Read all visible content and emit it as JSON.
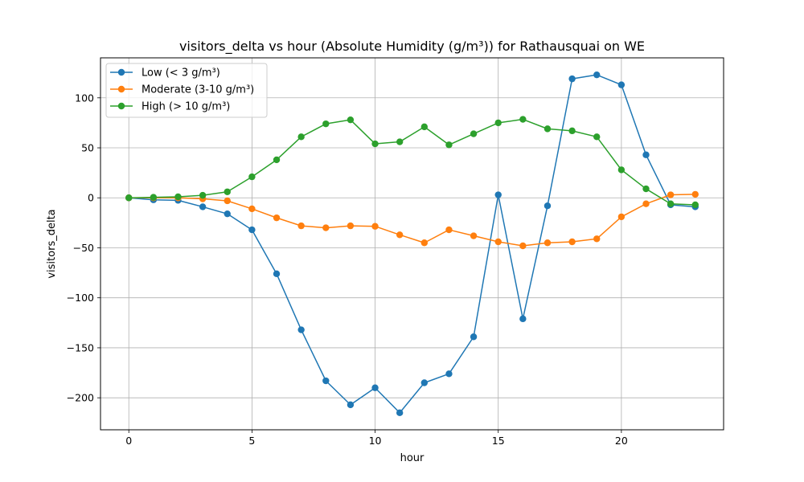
{
  "chart_data": {
    "type": "line",
    "title": "visitors_delta vs hour (Absolute Humidity (g/m³)) for Rathausquai on WE",
    "xlabel": "hour",
    "ylabel": "visitors_delta",
    "xlim": [
      -1.15,
      24.15
    ],
    "ylim": [
      -232,
      140
    ],
    "xticks": [
      0,
      5,
      10,
      15,
      20
    ],
    "yticks": [
      -200,
      -150,
      -100,
      -50,
      0,
      50,
      100
    ],
    "ytick_labels": [
      "−200",
      "−150",
      "−100",
      "−50",
      "0",
      "50",
      "100"
    ],
    "grid": true,
    "legend_position": "top-left",
    "x": [
      0,
      1,
      2,
      3,
      4,
      5,
      6,
      7,
      8,
      9,
      10,
      11,
      12,
      13,
      14,
      15,
      16,
      17,
      18,
      19,
      20,
      21,
      22,
      23
    ],
    "series": [
      {
        "name": "Low (< 3 g/m³)",
        "color": "#1f77b4",
        "values": [
          0,
          -2,
          -2.5,
          -9,
          -16,
          -32,
          -76,
          -132,
          -183,
          -207,
          -190,
          -215,
          -185,
          -176,
          -139,
          3,
          -121,
          -8,
          119,
          123,
          113,
          43,
          -7,
          -9
        ]
      },
      {
        "name": "Moderate (3-10 g/m³)",
        "color": "#ff7f0e",
        "values": [
          0,
          0,
          0,
          -1,
          -3,
          -11,
          -20,
          -28,
          -30,
          -28,
          -28.5,
          -37,
          -45,
          -32,
          -38,
          -44,
          -48,
          -45,
          -44,
          -41,
          -19,
          -6,
          3,
          3.5
        ]
      },
      {
        "name": "High (> 10 g/m³)",
        "color": "#2ca02c",
        "values": [
          0,
          0.5,
          1,
          2.5,
          6,
          21,
          38,
          61,
          74,
          78,
          54,
          56,
          71,
          53,
          64,
          75,
          78.5,
          69,
          67,
          61,
          28,
          9,
          -6,
          -7
        ]
      }
    ]
  }
}
